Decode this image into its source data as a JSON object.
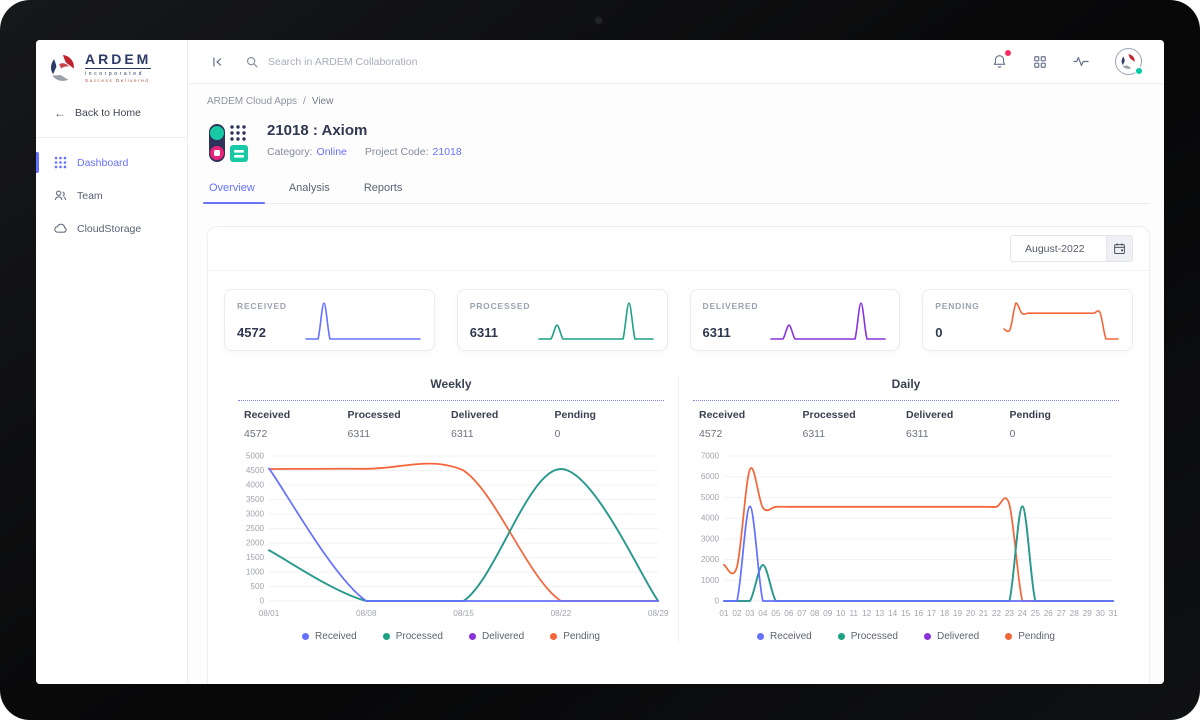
{
  "colors": {
    "primary": "#6571ff",
    "notification_dot": "#ff2e63",
    "online_status": "#00c9a7",
    "received": "#6571ff",
    "processed": "#1fa186",
    "delivered": "#8833d9",
    "pending": "#f4663a"
  },
  "sidebar": {
    "logo": {
      "brand": "ARDEM",
      "sub": "incorporated",
      "tagline": "Success Delivered"
    },
    "back": "Back to Home",
    "items": [
      {
        "label": "Dashboard",
        "icon": "grid-icon",
        "active": true
      },
      {
        "label": "Team",
        "icon": "team-icon",
        "active": false
      },
      {
        "label": "CloudStorage",
        "icon": "cloud-icon",
        "active": false
      }
    ]
  },
  "topbar": {
    "search_placeholder": "Search in ARDEM Collaboration"
  },
  "breadcrumb": {
    "parent": "ARDEM Cloud Apps",
    "sep": "/",
    "current": "View"
  },
  "project": {
    "title": "21018 : Axiom",
    "category_label": "Category:",
    "category_value": "Online",
    "code_label": "Project Code:",
    "code_value": "21018"
  },
  "tabs": [
    {
      "label": "Overview",
      "active": true
    },
    {
      "label": "Analysis",
      "active": false
    },
    {
      "label": "Reports",
      "active": false
    }
  ],
  "panel": {
    "date_value": "August-2022"
  },
  "cards": [
    {
      "label": "RECEIVED",
      "value": "4572",
      "color": "#6571ff",
      "spark_values": [
        0,
        0,
        0,
        4572,
        0,
        0,
        0,
        0,
        0,
        0,
        0,
        0,
        0,
        0,
        0,
        0,
        0,
        0,
        0,
        0
      ]
    },
    {
      "label": "PROCESSED",
      "value": "6311",
      "color": "#1fa186",
      "spark_values": [
        0,
        0,
        0,
        1750,
        0,
        0,
        0,
        0,
        0,
        0,
        0,
        0,
        0,
        0,
        0,
        4572,
        0,
        0,
        0,
        0
      ]
    },
    {
      "label": "DELIVERED",
      "value": "6311",
      "color": "#8833d9",
      "spark_values": [
        0,
        0,
        0,
        1750,
        0,
        0,
        0,
        0,
        0,
        0,
        0,
        0,
        0,
        0,
        0,
        4572,
        0,
        0,
        0,
        0
      ]
    },
    {
      "label": "PENDING",
      "value": "0",
      "color": "#f4663a",
      "spark_values": [
        1750,
        1650,
        6350,
        4500,
        4550,
        4550,
        4550,
        4550,
        4550,
        4550,
        4550,
        4550,
        4550,
        4550,
        4550,
        4550,
        4650,
        0,
        0,
        0
      ]
    }
  ],
  "chart_data": [
    {
      "type": "line",
      "title": "Weekly",
      "stats": [
        {
          "label": "Received",
          "value": "4572"
        },
        {
          "label": "Processed",
          "value": "6311"
        },
        {
          "label": "Delivered",
          "value": "6311"
        },
        {
          "label": "Pending",
          "value": "0"
        }
      ],
      "x": [
        "08/01",
        "08/08",
        "08/15",
        "08/22",
        "08/29"
      ],
      "ylim": [
        0,
        5000
      ],
      "ytick": 500,
      "grid": "horizontal",
      "series": [
        {
          "name": "Delivered",
          "color": "#8833d9",
          "values": [
            1750,
            0,
            0,
            4550,
            0
          ]
        },
        {
          "name": "Pending",
          "color": "#f4663a",
          "values": [
            4550,
            4560,
            4500,
            0,
            0
          ]
        },
        {
          "name": "Processed",
          "color": "#1fa186",
          "values": [
            1750,
            0,
            0,
            4550,
            0
          ]
        },
        {
          "name": "Received",
          "color": "#6571ff",
          "values": [
            4572,
            0,
            0,
            0,
            0
          ]
        }
      ],
      "legend": [
        {
          "label": "Received",
          "color": "#6571ff"
        },
        {
          "label": "Processed",
          "color": "#1fa186"
        },
        {
          "label": "Delivered",
          "color": "#8833d9"
        },
        {
          "label": "Pending",
          "color": "#f4663a"
        }
      ],
      "legend_position": "bottom"
    },
    {
      "type": "line",
      "title": "Daily",
      "stats": [
        {
          "label": "Received",
          "value": "4572"
        },
        {
          "label": "Processed",
          "value": "6311"
        },
        {
          "label": "Delivered",
          "value": "6311"
        },
        {
          "label": "Pending",
          "value": "0"
        }
      ],
      "x": [
        "01",
        "02",
        "03",
        "04",
        "05",
        "06",
        "07",
        "08",
        "09",
        "10",
        "11",
        "12",
        "13",
        "14",
        "15",
        "16",
        "17",
        "18",
        "19",
        "20",
        "21",
        "22",
        "23",
        "24",
        "25",
        "26",
        "27",
        "28",
        "29",
        "30",
        "31"
      ],
      "ylim": [
        0,
        7000
      ],
      "ytick": 1000,
      "grid": "horizontal",
      "series": [
        {
          "name": "Delivered",
          "color": "#8833d9",
          "values": [
            0,
            0,
            0,
            1739,
            0,
            0,
            0,
            0,
            0,
            0,
            0,
            0,
            0,
            0,
            0,
            0,
            0,
            0,
            0,
            0,
            0,
            0,
            0,
            4572,
            0,
            0,
            0,
            0,
            0,
            0,
            0
          ]
        },
        {
          "name": "Pending",
          "color": "#f4663a",
          "values": [
            1750,
            1650,
            6350,
            4500,
            4550,
            4550,
            4550,
            4550,
            4550,
            4550,
            4550,
            4550,
            4550,
            4550,
            4550,
            4550,
            4550,
            4550,
            4550,
            4550,
            4550,
            4550,
            4650,
            0,
            0,
            0,
            0,
            0,
            0,
            0,
            0
          ]
        },
        {
          "name": "Processed",
          "color": "#1fa186",
          "values": [
            0,
            0,
            0,
            1739,
            0,
            0,
            0,
            0,
            0,
            0,
            0,
            0,
            0,
            0,
            0,
            0,
            0,
            0,
            0,
            0,
            0,
            0,
            0,
            4572,
            0,
            0,
            0,
            0,
            0,
            0,
            0
          ]
        },
        {
          "name": "Received",
          "color": "#6571ff",
          "values": [
            0,
            0,
            4572,
            0,
            0,
            0,
            0,
            0,
            0,
            0,
            0,
            0,
            0,
            0,
            0,
            0,
            0,
            0,
            0,
            0,
            0,
            0,
            0,
            0,
            0,
            0,
            0,
            0,
            0,
            0,
            0
          ]
        }
      ],
      "legend": [
        {
          "label": "Received",
          "color": "#6571ff"
        },
        {
          "label": "Processed",
          "color": "#1fa186"
        },
        {
          "label": "Delivered",
          "color": "#8833d9"
        },
        {
          "label": "Pending",
          "color": "#f4663a"
        }
      ],
      "legend_position": "bottom"
    }
  ]
}
